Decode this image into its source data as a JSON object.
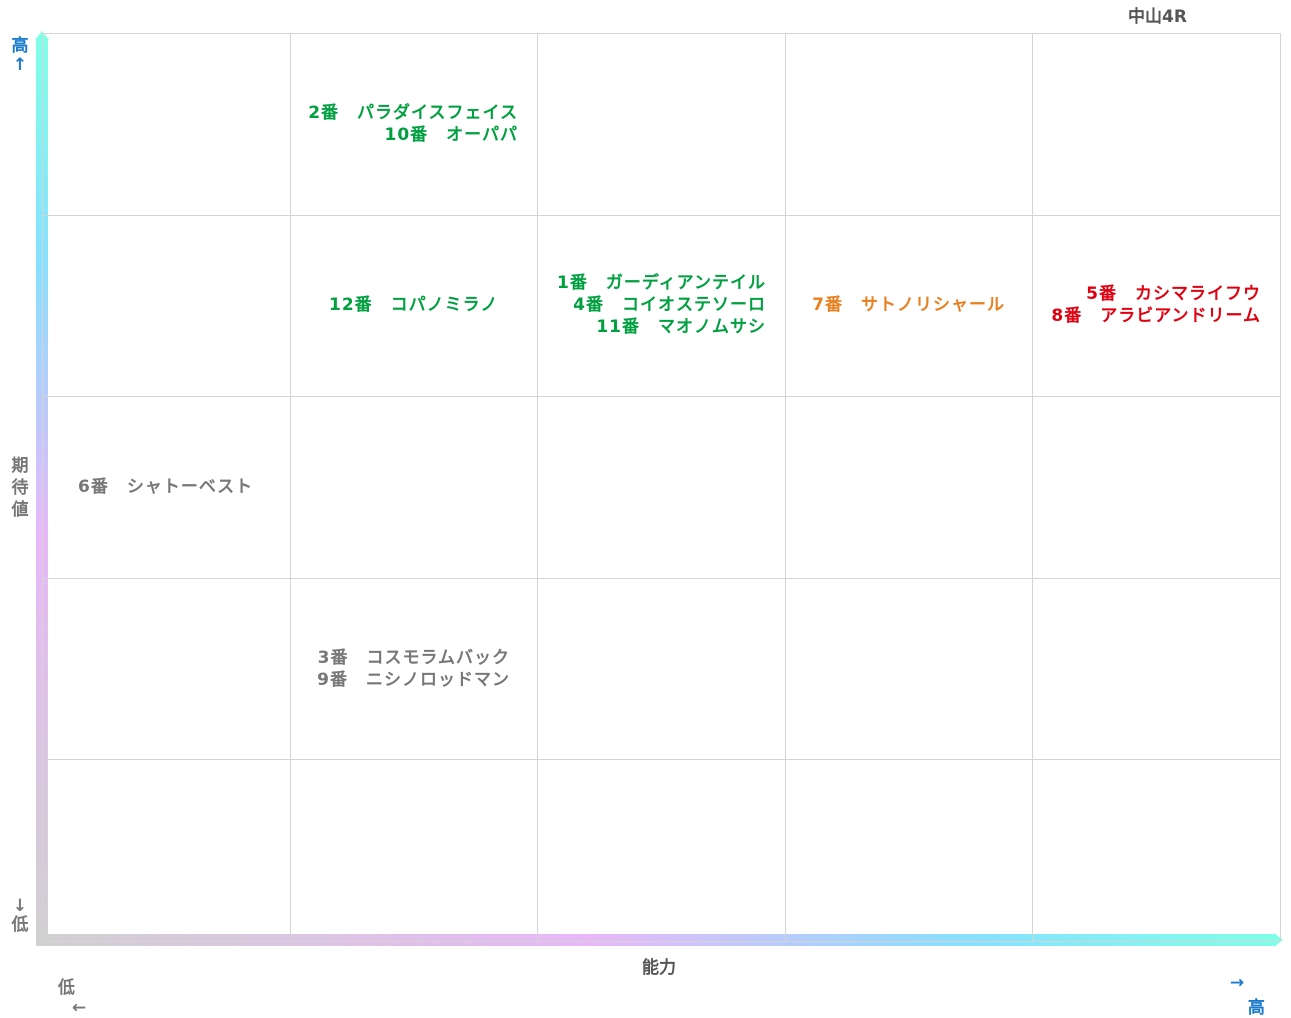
{
  "chart_data": {
    "type": "table",
    "title": "中山4R",
    "xlabel": "能力",
    "ylabel": "期待値",
    "x_axis": {
      "low_label": "低",
      "low_arrow": "←",
      "high_label": "高",
      "high_arrow": "→"
    },
    "y_axis": {
      "high_label": "高",
      "high_arrow": "↑",
      "low_label": "低",
      "low_arrow": "↓"
    },
    "columns": 5,
    "rows": 5,
    "cells": [
      {
        "col": 1,
        "row": 0,
        "color": "#00a040",
        "lines": [
          "2番　パラダイスフェイス",
          "10番　オーパパ"
        ]
      },
      {
        "col": 1,
        "row": 1,
        "color": "#00a040",
        "lines": [
          "12番　コパノミラノ"
        ]
      },
      {
        "col": 2,
        "row": 1,
        "color": "#00a040",
        "lines": [
          "1番　ガーディアンテイル",
          "4番　コイオステソーロ",
          "11番　マオノムサシ"
        ]
      },
      {
        "col": 3,
        "row": 1,
        "color": "#e88020",
        "lines": [
          "7番　サトノリシャール"
        ]
      },
      {
        "col": 4,
        "row": 1,
        "color": "#e00010",
        "lines": [
          "5番　カシマライフウ",
          "8番　アラビアンドリーム"
        ]
      },
      {
        "col": 0,
        "row": 2,
        "color": "#777777",
        "lines": [
          "6番　シャトーベスト"
        ]
      },
      {
        "col": 1,
        "row": 3,
        "color": "#777777",
        "lines": [
          "3番　コスモラムバック",
          "9番　ニシノロッドマン"
        ]
      }
    ],
    "colors": {
      "axis_high": "#1a7acc",
      "axis_low": "#777777",
      "grid": "#d4d4d4"
    }
  }
}
